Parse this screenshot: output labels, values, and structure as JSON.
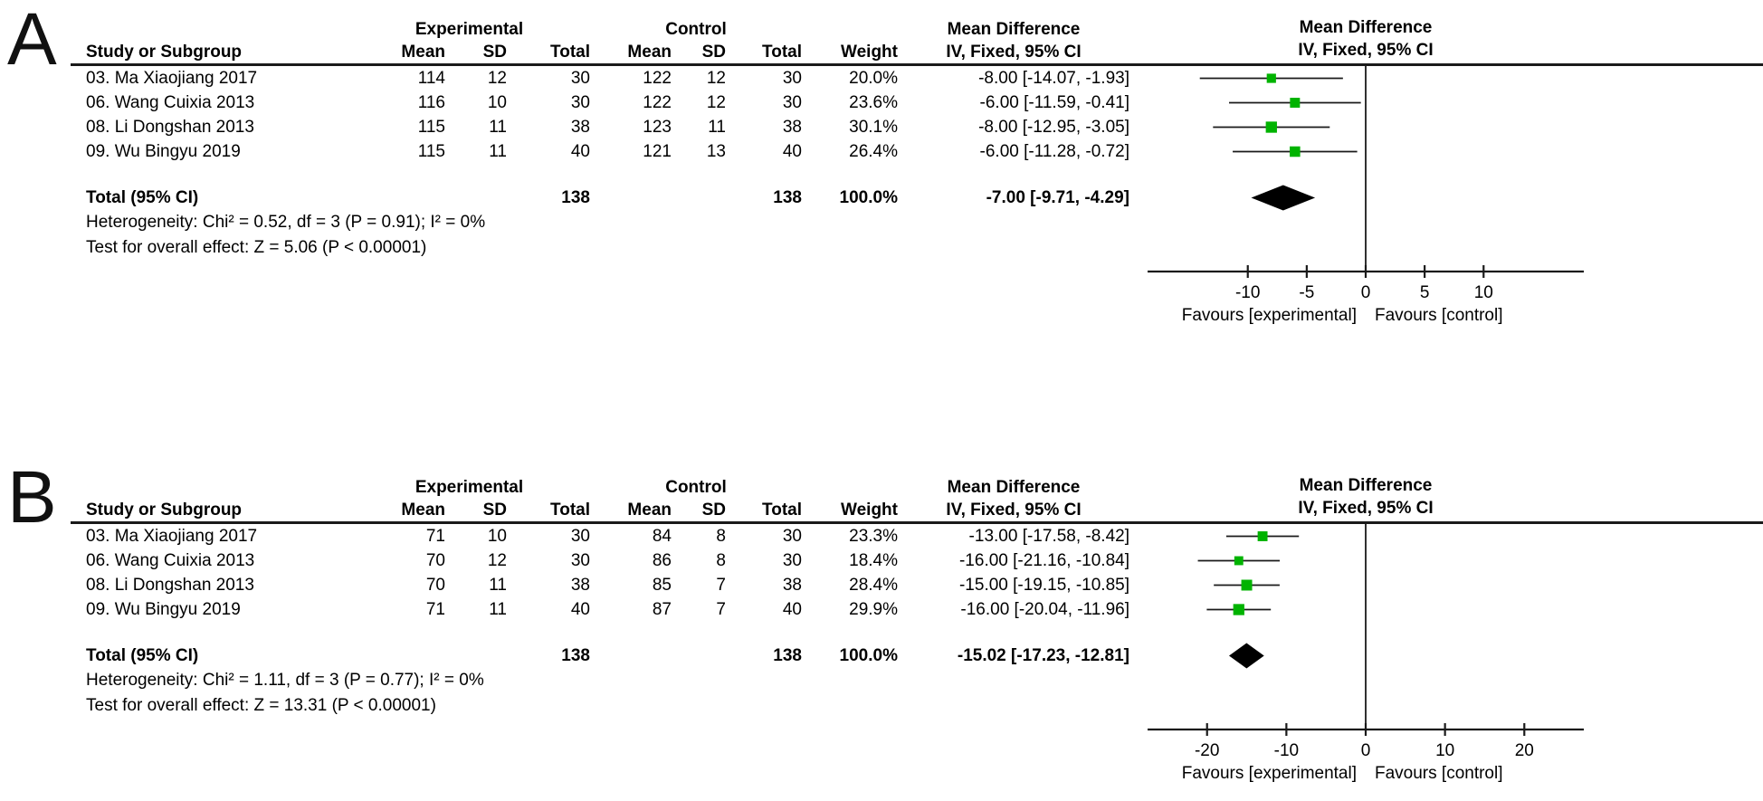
{
  "figure": {
    "panels": [
      {
        "label": "A",
        "header": {
          "study": "Study or Subgroup",
          "group1": "Experimental",
          "group2": "Control",
          "mean": "Mean",
          "sd": "SD",
          "total": "Total",
          "weight": "Weight",
          "md_line1": "Mean Difference",
          "md_line2": "IV, Fixed, 95% CI"
        },
        "rows": [
          {
            "study": "03. Ma Xiaojiang 2017",
            "e_mean": "114",
            "e_sd": "12",
            "e_total": "30",
            "c_mean": "122",
            "c_sd": "12",
            "c_total": "30",
            "weight": "20.0%",
            "ci": "-8.00 [-14.07, -1.93]"
          },
          {
            "study": "06. Wang Cuixia 2013",
            "e_mean": "116",
            "e_sd": "10",
            "e_total": "30",
            "c_mean": "122",
            "c_sd": "12",
            "c_total": "30",
            "weight": "23.6%",
            "ci": "-6.00 [-11.59, -0.41]"
          },
          {
            "study": "08. Li Dongshan 2013",
            "e_mean": "115",
            "e_sd": "11",
            "e_total": "38",
            "c_mean": "123",
            "c_sd": "11",
            "c_total": "38",
            "weight": "30.1%",
            "ci": "-8.00 [-12.95, -3.05]"
          },
          {
            "study": "09. Wu Bingyu 2019",
            "e_mean": "115",
            "e_sd": "11",
            "e_total": "40",
            "c_mean": "121",
            "c_sd": "13",
            "c_total": "40",
            "weight": "26.4%",
            "ci": "-6.00 [-11.28, -0.72]"
          }
        ],
        "total_row": {
          "label": "Total (95% CI)",
          "e_total": "138",
          "c_total": "138",
          "weight": "100.0%",
          "ci": "-7.00 [-9.71, -4.29]"
        },
        "heterogeneity": "Heterogeneity: Chi² = 0.52, df = 3 (P = 0.91); I² = 0%",
        "overall_effect": "Test for overall effect: Z = 5.06 (P < 0.00001)"
      },
      {
        "label": "B",
        "header": {
          "study": "Study or Subgroup",
          "group1": "Experimental",
          "group2": "Control",
          "mean": "Mean",
          "sd": "SD",
          "total": "Total",
          "weight": "Weight",
          "md_line1": "Mean Difference",
          "md_line2": "IV, Fixed, 95% CI"
        },
        "rows": [
          {
            "study": "03. Ma Xiaojiang 2017",
            "e_mean": "71",
            "e_sd": "10",
            "e_total": "30",
            "c_mean": "84",
            "c_sd": "8",
            "c_total": "30",
            "weight": "23.3%",
            "ci": "-13.00 [-17.58, -8.42]"
          },
          {
            "study": "06. Wang Cuixia 2013",
            "e_mean": "70",
            "e_sd": "12",
            "e_total": "30",
            "c_mean": "86",
            "c_sd": "8",
            "c_total": "30",
            "weight": "18.4%",
            "ci": "-16.00 [-21.16, -10.84]"
          },
          {
            "study": "08. Li Dongshan 2013",
            "e_mean": "70",
            "e_sd": "11",
            "e_total": "38",
            "c_mean": "85",
            "c_sd": "7",
            "c_total": "38",
            "weight": "28.4%",
            "ci": "-15.00 [-19.15, -10.85]"
          },
          {
            "study": "09. Wu Bingyu 2019",
            "e_mean": "71",
            "e_sd": "11",
            "e_total": "40",
            "c_mean": "87",
            "c_sd": "7",
            "c_total": "40",
            "weight": "29.9%",
            "ci": "-16.00 [-20.04, -11.96]"
          }
        ],
        "total_row": {
          "label": "Total (95% CI)",
          "e_total": "138",
          "c_total": "138",
          "weight": "100.0%",
          "ci": "-15.02 [-17.23, -12.81]"
        },
        "heterogeneity": "Heterogeneity: Chi² = 1.11, df = 3 (P = 0.77); I² = 0%",
        "overall_effect": "Test for overall effect: Z = 13.31 (P < 0.00001)"
      }
    ]
  },
  "chart_data": [
    {
      "type": "scatter",
      "subtype": "forest-plot",
      "title": "Mean Difference",
      "subtitle": "IV, Fixed, 95% CI",
      "model": "Fixed effect, inverse variance",
      "categories": [
        "03. Ma Xiaojiang 2017",
        "06. Wang Cuixia 2013",
        "08. Li Dongshan 2013",
        "09. Wu Bingyu 2019"
      ],
      "series": [
        {
          "name": "Mean Difference IV, Fixed, 95% CI",
          "points": [
            {
              "md": -8.0,
              "lo": -14.07,
              "hi": -1.93,
              "weight": 20.0
            },
            {
              "md": -6.0,
              "lo": -11.59,
              "hi": -0.41,
              "weight": 23.6
            },
            {
              "md": -8.0,
              "lo": -12.95,
              "hi": -3.05,
              "weight": 30.1
            },
            {
              "md": -6.0,
              "lo": -11.28,
              "hi": -0.72,
              "weight": 26.4
            }
          ]
        }
      ],
      "total": {
        "label": "Total (95% CI)",
        "md": -7.0,
        "lo": -9.71,
        "hi": -4.29,
        "weight": 100.0
      },
      "x_ticks": [
        -10,
        -5,
        0,
        5,
        10
      ],
      "xlim": [
        -18.5,
        18.5
      ],
      "zero_line": 0,
      "grid": false,
      "axis_label_left": "Favours [experimental]",
      "axis_label_right": "Favours [control]",
      "marker_color": "#00b300",
      "diamond_color": "#000000"
    },
    {
      "type": "scatter",
      "subtype": "forest-plot",
      "title": "Mean Difference",
      "subtitle": "IV, Fixed, 95% CI",
      "model": "Fixed effect, inverse variance",
      "categories": [
        "03. Ma Xiaojiang 2017",
        "06. Wang Cuixia 2013",
        "08. Li Dongshan 2013",
        "09. Wu Bingyu 2019"
      ],
      "series": [
        {
          "name": "Mean Difference IV, Fixed, 95% CI",
          "points": [
            {
              "md": -13.0,
              "lo": -17.58,
              "hi": -8.42,
              "weight": 23.3
            },
            {
              "md": -16.0,
              "lo": -21.16,
              "hi": -10.84,
              "weight": 18.4
            },
            {
              "md": -15.0,
              "lo": -19.15,
              "hi": -10.85,
              "weight": 28.4
            },
            {
              "md": -16.0,
              "lo": -20.04,
              "hi": -11.96,
              "weight": 29.9
            }
          ]
        }
      ],
      "total": {
        "label": "Total (95% CI)",
        "md": -15.02,
        "lo": -17.23,
        "hi": -12.81,
        "weight": 100.0
      },
      "x_ticks": [
        -20,
        -10,
        0,
        10,
        20
      ],
      "xlim": [
        -27.5,
        27.5
      ],
      "zero_line": 0,
      "grid": false,
      "axis_label_left": "Favours [experimental]",
      "axis_label_right": "Favours [control]",
      "marker_color": "#00b300",
      "diamond_color": "#000000"
    }
  ]
}
